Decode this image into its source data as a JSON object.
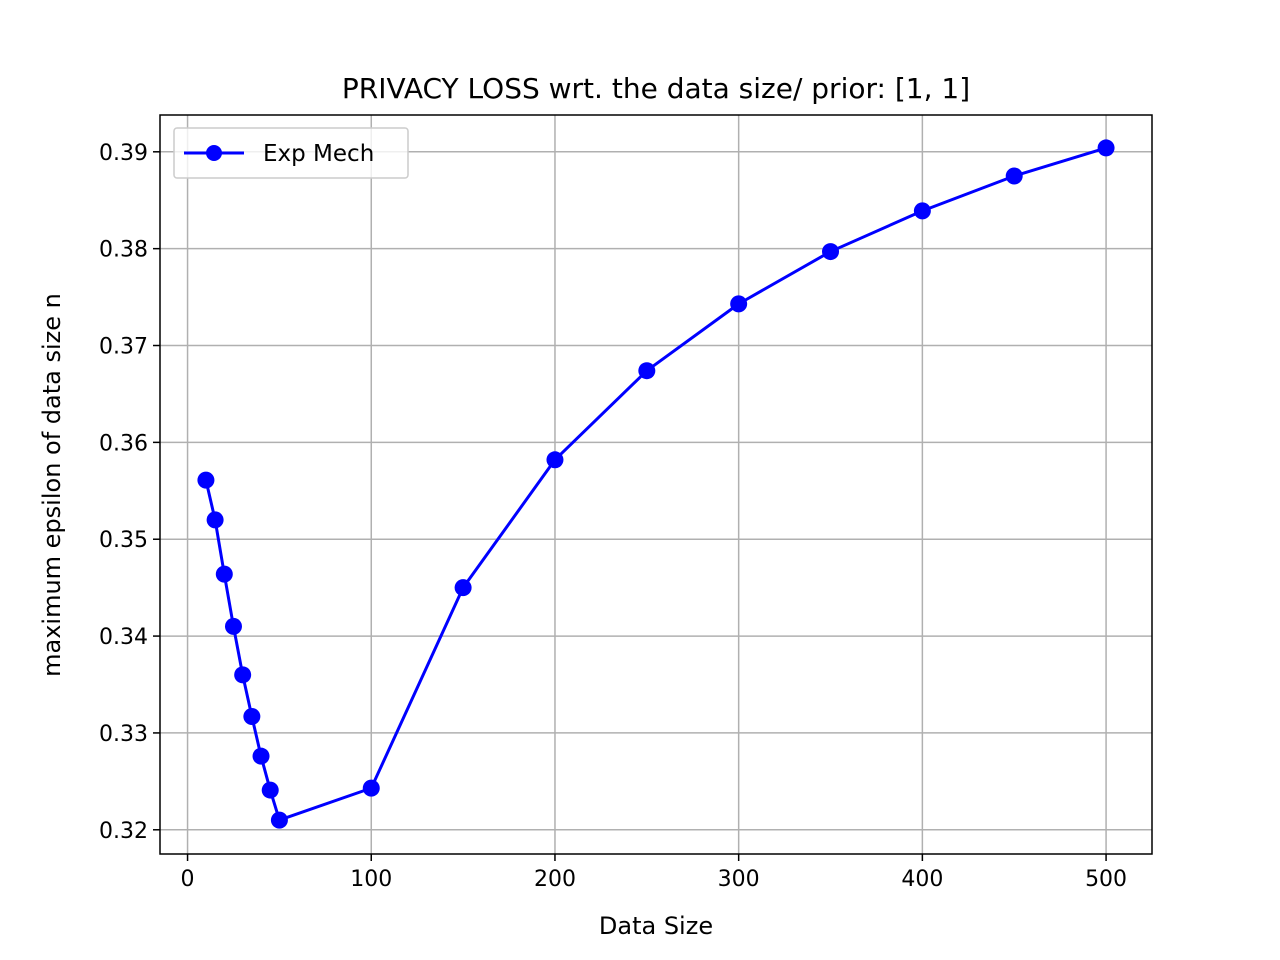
{
  "chart_data": {
    "type": "line",
    "title": "PRIVACY LOSS wrt. the data size/ prior: [1, 1]",
    "xlabel": "Data Size",
    "ylabel": "maximum epsilon of data size n",
    "xlim": [
      -15,
      525
    ],
    "ylim": [
      0.3175,
      0.3938
    ],
    "xticks": [
      0,
      100,
      200,
      300,
      400,
      500
    ],
    "xtick_labels": [
      "0",
      "100",
      "200",
      "300",
      "400",
      "500"
    ],
    "yticks": [
      0.32,
      0.33,
      0.34,
      0.35,
      0.36,
      0.37,
      0.38,
      0.39
    ],
    "ytick_labels": [
      "0.32",
      "0.33",
      "0.34",
      "0.35",
      "0.36",
      "0.37",
      "0.38",
      "0.39"
    ],
    "grid": true,
    "legend_position": "top-left",
    "series": [
      {
        "name": "Exp Mech",
        "color": "#0000ff",
        "marker": "circle",
        "x": [
          10,
          15,
          20,
          25,
          30,
          35,
          40,
          45,
          50,
          100,
          150,
          200,
          250,
          300,
          350,
          400,
          450,
          500
        ],
        "y": [
          0.3561,
          0.352,
          0.3464,
          0.341,
          0.336,
          0.3317,
          0.3276,
          0.3241,
          0.321,
          0.3243,
          0.345,
          0.3582,
          0.3674,
          0.3743,
          0.3797,
          0.3839,
          0.3875,
          0.3904
        ]
      }
    ]
  }
}
